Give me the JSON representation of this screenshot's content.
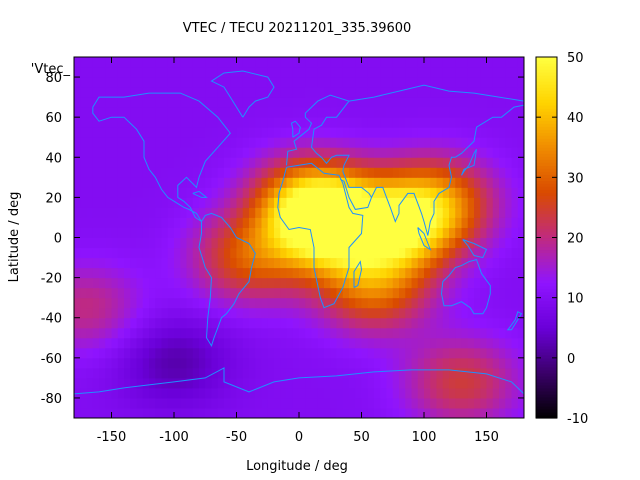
{
  "chart_data": {
    "type": "heatmap",
    "title": "VTEC / TECU 20211201_335.39600",
    "xlabel": "Longitude / deg",
    "ylabel": "Latitude / deg",
    "legend_label": "'Vtec_",
    "xlim": [
      -180,
      180
    ],
    "ylim": [
      -90,
      90
    ],
    "x_ticks": [
      -150,
      -100,
      -50,
      0,
      50,
      100,
      150
    ],
    "y_ticks": [
      -80,
      -60,
      -40,
      -20,
      0,
      20,
      40,
      60,
      80
    ],
    "colorbar": {
      "range": [
        -10,
        50
      ],
      "ticks": [
        -10,
        0,
        10,
        20,
        30,
        40,
        50
      ],
      "palette": [
        "#000000",
        "#3a0068",
        "#6a00d8",
        "#8f14ff",
        "#c02a80",
        "#d94a00",
        "#f08c00",
        "#ffd400",
        "#ffff40"
      ]
    },
    "grid": false,
    "coastline_color": "#1e90ff",
    "field": {
      "background_vtec": 10,
      "features": [
        {
          "lon": 25,
          "lat": 5,
          "vtec": 44
        },
        {
          "lon": 10,
          "lat": 18,
          "vtec": 38
        },
        {
          "lon": 80,
          "lat": 5,
          "vtec": 40
        },
        {
          "lon": 110,
          "lat": 18,
          "vtec": 32
        },
        {
          "lon": -40,
          "lat": -10,
          "vtec": 28
        },
        {
          "lon": 60,
          "lat": -25,
          "vtec": 30
        },
        {
          "lon": 130,
          "lat": -72,
          "vtec": 24
        },
        {
          "lon": -100,
          "lat": -62,
          "vtec": 2
        },
        {
          "lon": -170,
          "lat": -35,
          "vtec": 20
        }
      ]
    }
  }
}
